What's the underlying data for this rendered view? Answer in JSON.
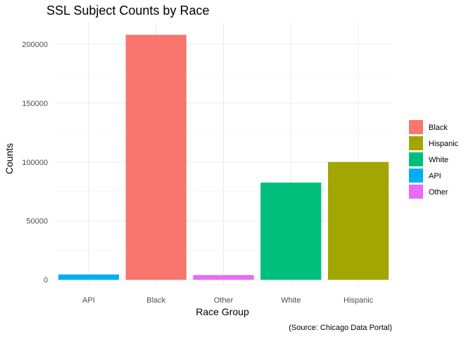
{
  "chart_data": {
    "type": "bar",
    "title": "SSL Subject Counts by Race",
    "xlabel": "Race Group",
    "ylabel": "Counts",
    "caption": "(Source: Chicago Data Portal)",
    "categories": [
      "API",
      "Black",
      "Other",
      "White",
      "Hispanic"
    ],
    "values": [
      4500,
      208000,
      4000,
      82500,
      100000
    ],
    "colors": [
      "#00B0F6",
      "#F8766D",
      "#E76BF3",
      "#00BF7D",
      "#A3A500"
    ],
    "ylim": [
      0,
      220000
    ],
    "yticks": [
      0,
      50000,
      100000,
      150000,
      200000
    ],
    "ytick_labels": [
      "0",
      "50000",
      "100000",
      "150000",
      "200000"
    ],
    "grid": true,
    "legend_position": "right",
    "legend": [
      {
        "label": "Black",
        "color": "#F8766D"
      },
      {
        "label": "Hispanic",
        "color": "#A3A500"
      },
      {
        "label": "White",
        "color": "#00BF7D"
      },
      {
        "label": "API",
        "color": "#00B0F6"
      },
      {
        "label": "Other",
        "color": "#E76BF3"
      }
    ]
  }
}
